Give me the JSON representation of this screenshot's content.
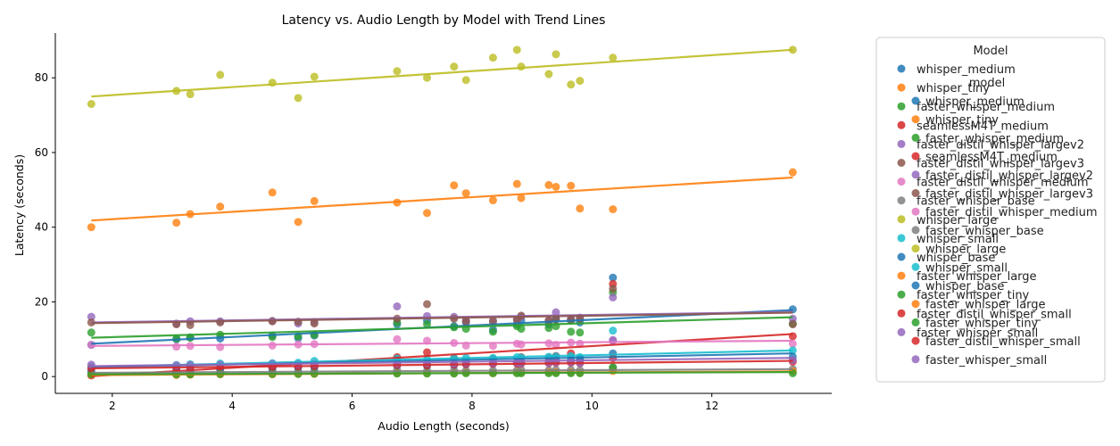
{
  "chart_data": {
    "type": "scatter",
    "title": "Latency vs. Audio Length by Model with Trend Lines",
    "xlabel": "Audio Length (seconds)",
    "ylabel": "Latency (seconds)",
    "xlim": [
      1.05,
      14.0
    ],
    "ylim": [
      -4.5,
      92.0
    ],
    "x_ticks": [
      2,
      4,
      6,
      8,
      10,
      12
    ],
    "y_ticks": [
      0,
      20,
      40,
      60,
      80
    ],
    "grid": false,
    "legend_title": "Model",
    "legend_inner_title": "model",
    "legend_placement": "outside-right",
    "x": [
      1.65,
      3.07,
      3.3,
      3.8,
      4.67,
      5.1,
      5.37,
      6.75,
      7.25,
      7.7,
      7.9,
      8.35,
      8.75,
      8.82,
      9.28,
      9.4,
      9.65,
      9.8,
      10.35,
      13.35
    ],
    "series": [
      {
        "name": "whisper_medium",
        "color": "#1f77b4",
        "values": [
          8.5,
          10.0,
          10.5,
          10.2,
          11.0,
          10.3,
          11.0,
          14.0,
          15.0,
          13.5,
          14.5,
          12.5,
          14.0,
          15.0,
          14.0,
          15.5,
          15.0,
          14.5,
          26.5,
          18.0
        ],
        "trend": [
          8.8,
          17.8
        ]
      },
      {
        "name": "whisper_tiny",
        "color": "#ff7f0e",
        "values": [
          40.0,
          41.2,
          43.5,
          45.5,
          49.3,
          41.4,
          47.0,
          46.6,
          43.8,
          51.2,
          49.1,
          47.2,
          51.6,
          47.8,
          51.3,
          50.8,
          51.1,
          45.0,
          44.8,
          54.7
        ],
        "trend": [
          41.8,
          53.3
        ]
      },
      {
        "name": "faster_whisper_medium",
        "color": "#2ca02c",
        "values": [
          11.8,
          10.2,
          10.4,
          11.2,
          10.6,
          10.8,
          11.2,
          14.5,
          14.0,
          13.2,
          12.8,
          12.0,
          13.5,
          12.8,
          13.0,
          13.5,
          12.0,
          11.8,
          22.5,
          14.2
        ],
        "trend": [
          10.4,
          15.9
        ]
      },
      {
        "name": "seamlessM4T_medium",
        "color": "#d62728",
        "values": [
          0.3,
          1.2,
          0.8,
          2.0,
          2.3,
          2.6,
          3.1,
          5.2,
          6.5,
          4.9,
          4.2,
          4.7,
          3.7,
          5.2,
          5.0,
          5.5,
          6.2,
          4.4,
          24.8,
          10.8
        ],
        "trend": [
          0.1,
          11.4
        ]
      },
      {
        "name": "faster_distil_whisper_largev2",
        "color": "#9467bd",
        "values": [
          16.0,
          14.2,
          14.8,
          14.8,
          14.9,
          14.2,
          14.6,
          18.8,
          16.2,
          16.0,
          15.1,
          15.0,
          15.2,
          16.0,
          15.0,
          17.2,
          15.5,
          15.8,
          21.2,
          15.5
        ],
        "trend": [
          14.5,
          17.3
        ]
      },
      {
        "name": "faster_distil_whisper_largev3",
        "color": "#8c564b",
        "values": [
          14.5,
          14.0,
          13.8,
          14.5,
          14.8,
          14.7,
          14.2,
          15.5,
          19.4,
          15.5,
          14.8,
          14.7,
          15.2,
          16.3,
          15.0,
          15.3,
          15.2,
          15.5,
          23.5,
          14.0
        ],
        "trend": [
          14.3,
          17.1
        ]
      },
      {
        "name": "faster_distil_whisper_medium",
        "color": "#e377c2",
        "values": [
          8.5,
          8.0,
          8.2,
          7.9,
          8.3,
          8.6,
          8.7,
          10.0,
          9.6,
          9.0,
          8.3,
          8.2,
          8.8,
          8.6,
          8.9,
          8.5,
          9.1,
          8.8,
          9.5,
          8.8
        ],
        "trend": [
          8.2,
          9.6
        ]
      },
      {
        "name": "faster_whisper_base",
        "color": "#7f7f7f",
        "values": [
          1.0,
          1.3,
          1.2,
          1.5,
          1.5,
          1.3,
          1.5,
          1.8,
          1.6,
          1.7,
          1.6,
          1.6,
          1.7,
          1.8,
          1.7,
          1.8,
          1.8,
          1.7,
          2.3,
          2.0
        ],
        "trend": [
          1.0,
          2.0
        ]
      },
      {
        "name": "whisper_large",
        "color": "#bcbd22",
        "values": [
          73.0,
          76.5,
          75.6,
          80.8,
          78.7,
          74.6,
          80.3,
          81.8,
          80.0,
          83.0,
          79.4,
          85.4,
          87.5,
          83.0,
          81.0,
          86.3,
          78.2,
          79.2,
          85.4,
          87.5
        ],
        "trend": [
          75.0,
          87.5
        ]
      },
      {
        "name": "whisper_small",
        "color": "#17becf",
        "values": [
          2.7,
          3.1,
          3.3,
          3.5,
          3.6,
          3.7,
          4.2,
          4.8,
          4.6,
          4.9,
          5.0,
          5.0,
          5.2,
          5.1,
          5.3,
          5.4,
          5.5,
          5.2,
          12.3,
          7.0
        ],
        "trend": [
          2.6,
          7.0
        ]
      },
      {
        "name": "whisper_base",
        "color": "#1f77b4",
        "values": [
          1.6,
          1.8,
          1.9,
          2.2,
          2.3,
          2.4,
          2.5,
          3.0,
          2.9,
          3.1,
          3.3,
          3.5,
          3.8,
          3.9,
          4.0,
          4.3,
          4.5,
          4.6,
          6.2,
          5.3
        ],
        "trend": [
          2.5,
          6.2
        ]
      },
      {
        "name": "faster_whisper_large",
        "color": "#ff7f0e",
        "values": [
          0.5,
          0.4,
          0.5,
          0.6,
          0.6,
          0.7,
          0.7,
          0.9,
          0.9,
          0.9,
          1.0,
          0.9,
          1.0,
          1.0,
          1.1,
          1.1,
          1.1,
          1.0,
          1.5,
          1.4
        ],
        "trend": [
          0.4,
          1.4
        ]
      },
      {
        "name": "faster_whisper_tiny",
        "color": "#2ca02c",
        "values": [
          0.6,
          0.6,
          0.6,
          0.7,
          0.7,
          0.7,
          0.8,
          0.8,
          0.8,
          0.8,
          0.9,
          0.9,
          0.9,
          0.9,
          0.9,
          0.9,
          0.9,
          0.9,
          2.5,
          0.9
        ],
        "trend": [
          0.6,
          1.2
        ]
      },
      {
        "name": "faster_distil_whisper_small",
        "color": "#d62728",
        "values": [
          2.2,
          2.4,
          2.5,
          2.7,
          2.6,
          2.7,
          2.8,
          3.1,
          3.0,
          3.2,
          3.3,
          3.4,
          3.5,
          3.5,
          3.6,
          3.7,
          3.7,
          3.6,
          5.0,
          4.0
        ],
        "trend": [
          2.2,
          4.2
        ]
      },
      {
        "name": "faster_whisper_small",
        "color": "#9467bd",
        "values": [
          3.2,
          3.0,
          3.1,
          3.2,
          3.4,
          3.3,
          3.4,
          3.5,
          3.6,
          3.5,
          3.6,
          3.6,
          3.7,
          3.6,
          3.7,
          3.8,
          3.8,
          3.6,
          9.8,
          4.4
        ],
        "trend": [
          2.8,
          5.0
        ]
      }
    ]
  }
}
